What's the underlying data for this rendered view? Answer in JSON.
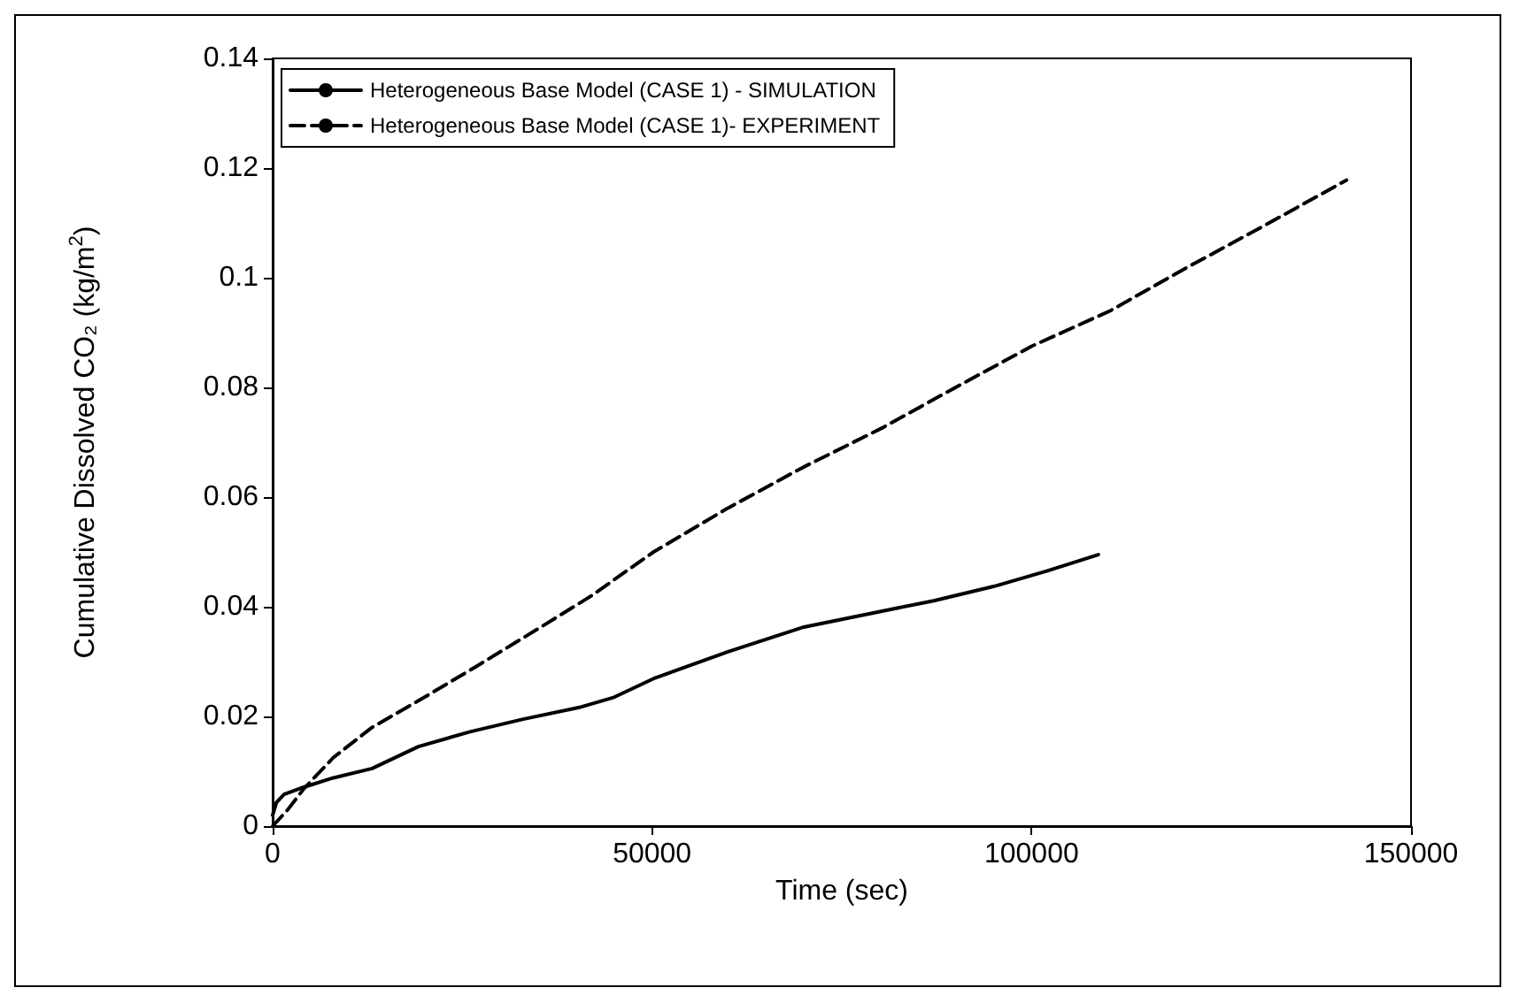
{
  "chart_data": {
    "type": "line",
    "xlabel": "Time (sec)",
    "ylabel": "Cumulative Dissolved CO₂ (kg/m$^{2}$)",
    "xlim": [
      0,
      150000
    ],
    "xticks": [
      0,
      50000,
      100000,
      150000
    ],
    "ylim": [
      0,
      0.14
    ],
    "yticks": [
      0,
      0.02,
      0.04,
      0.06,
      0.08,
      0.1,
      0.12,
      0.14
    ],
    "grid": false,
    "legend": "top left",
    "marker": "none",
    "series": [
      {
        "name": "Heterogeneous Base Model (CASE 1) - SIMULATION",
        "color": "#000000",
        "line_style": "solid",
        "x": [
          0,
          500,
          1500,
          4100,
          8000,
          13100,
          19200,
          26000,
          33000,
          40300,
          45000,
          50200,
          60000,
          70000,
          80300,
          87100,
          95000,
          102000,
          108800
        ],
        "values": [
          0.002,
          0.0043,
          0.0058,
          0.0071,
          0.0088,
          0.0105,
          0.0145,
          0.0172,
          0.0195,
          0.0216,
          0.0235,
          0.0269,
          0.0318,
          0.0363,
          0.0392,
          0.0411,
          0.0437,
          0.0465,
          0.0495
        ]
      },
      {
        "name": "Heterogeneous Base Model (CASE 1)- EXPERIMENT",
        "color": "#000000",
        "line_style": "dashed",
        "x": [
          0,
          2000,
          4100,
          8000,
          13100,
          20000,
          26700,
          35000,
          42000,
          50200,
          60000,
          70000,
          80300,
          90000,
          100000,
          110400,
          120000,
          130000,
          141500
        ],
        "values": [
          0,
          0.003,
          0.0068,
          0.0125,
          0.018,
          0.0235,
          0.029,
          0.036,
          0.042,
          0.05,
          0.058,
          0.0655,
          0.0726,
          0.08,
          0.0875,
          0.094,
          0.1015,
          0.109,
          0.1178
        ]
      }
    ]
  }
}
